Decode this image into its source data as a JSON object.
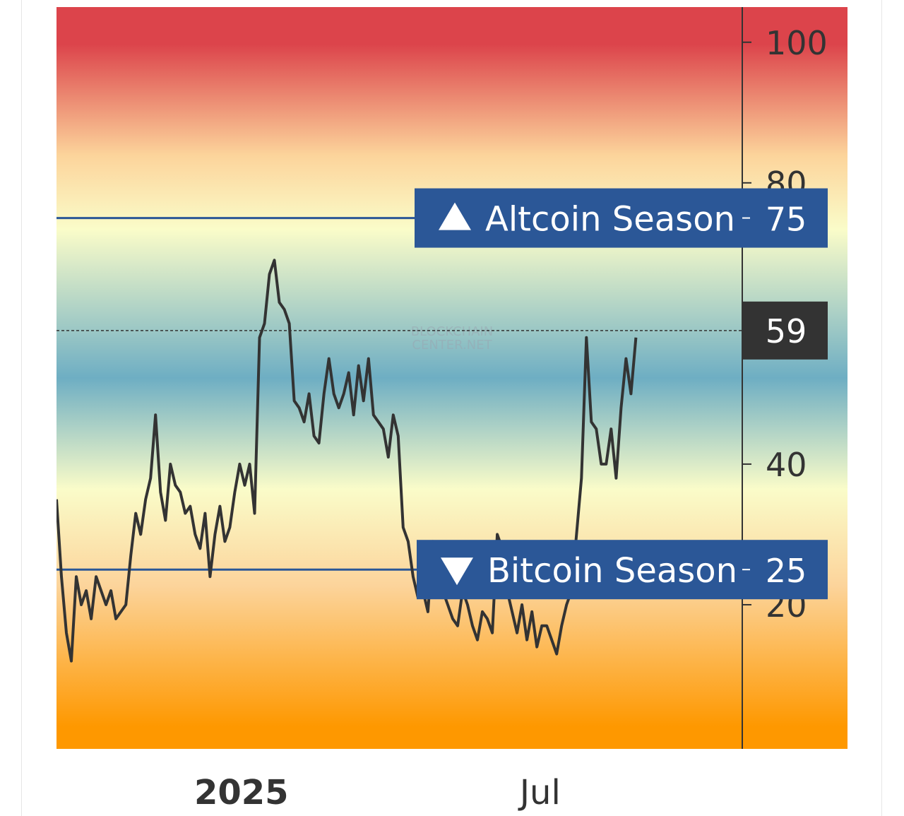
{
  "chart_data": {
    "type": "line",
    "title": "",
    "xlabel": "",
    "ylabel": "",
    "ylim": [
      -0.5,
      105
    ],
    "y_ticks": [
      {
        "value": 100,
        "label": "100"
      },
      {
        "value": 80,
        "label": "80"
      },
      {
        "value": 40,
        "label": "40"
      },
      {
        "value": 20,
        "label": "20"
      }
    ],
    "x_ticks": [
      {
        "date": "2025-01-01",
        "label": "2025"
      },
      {
        "date": "2025-07-01",
        "label": "Jul"
      }
    ],
    "x_range": [
      "2024-09-11",
      "2025-10-31"
    ],
    "thresholds": [
      {
        "value": 75,
        "label": "Altcoin Season",
        "value_label": "75",
        "marker": "triangle-up-icon"
      },
      {
        "value": 25,
        "label": "Bitcoin Season",
        "value_label": "25",
        "marker": "triangle-down-icon"
      }
    ],
    "current": {
      "value": 59,
      "label": "59"
    },
    "watermark": [
      "BLOCKCHAIN",
      "CENTER.NET"
    ],
    "colors": {
      "line": "#333333",
      "threshold_line": "#2b5797",
      "label_bg": "#2b5797",
      "current_bg": "#333333",
      "gradient": [
        "#dc444b",
        "#fcd49b",
        "#fafcc9",
        "#6eaec3",
        "#fafcc9",
        "#fcd49b",
        "#fe9800"
      ]
    },
    "series": [
      {
        "x": [
          "2024-09-11",
          "2024-09-14",
          "2024-09-17",
          "2024-09-20",
          "2024-09-23",
          "2024-09-26",
          "2024-09-29",
          "2024-10-02",
          "2024-10-05",
          "2024-10-08",
          "2024-10-11",
          "2024-10-14",
          "2024-10-17",
          "2024-10-20",
          "2024-10-23",
          "2024-10-26",
          "2024-10-29",
          "2024-11-01",
          "2024-11-04",
          "2024-11-07",
          "2024-11-10",
          "2024-11-13",
          "2024-11-16",
          "2024-11-19",
          "2024-11-22",
          "2024-11-25",
          "2024-11-28",
          "2024-12-01",
          "2024-12-04",
          "2024-12-07",
          "2024-12-10",
          "2024-12-13",
          "2024-12-16",
          "2024-12-19",
          "2024-12-22",
          "2024-12-25",
          "2024-12-28",
          "2024-12-31",
          "2025-01-03",
          "2025-01-06",
          "2025-01-09",
          "2025-01-12",
          "2025-01-15",
          "2025-01-18",
          "2025-01-21",
          "2025-01-24",
          "2025-01-27",
          "2025-01-30",
          "2025-02-02",
          "2025-02-05",
          "2025-02-08",
          "2025-02-11",
          "2025-02-14",
          "2025-02-17",
          "2025-02-20",
          "2025-02-23",
          "2025-02-26",
          "2025-03-01",
          "2025-03-04",
          "2025-03-07",
          "2025-03-10",
          "2025-03-13",
          "2025-03-16",
          "2025-03-19",
          "2025-03-22",
          "2025-03-25",
          "2025-03-28",
          "2025-03-31",
          "2025-04-03",
          "2025-04-06",
          "2025-04-09",
          "2025-04-12",
          "2025-04-15",
          "2025-04-18",
          "2025-04-21",
          "2025-04-24",
          "2025-04-27",
          "2025-04-30",
          "2025-05-03",
          "2025-05-06",
          "2025-05-09",
          "2025-05-12",
          "2025-05-15",
          "2025-05-18",
          "2025-05-21",
          "2025-05-24",
          "2025-05-27",
          "2025-05-30",
          "2025-06-02",
          "2025-06-05",
          "2025-06-08",
          "2025-06-11",
          "2025-06-14",
          "2025-06-17",
          "2025-06-20",
          "2025-06-23",
          "2025-06-26",
          "2025-06-29",
          "2025-07-02",
          "2025-07-05",
          "2025-07-08",
          "2025-07-11",
          "2025-07-14",
          "2025-07-17",
          "2025-07-20",
          "2025-07-23",
          "2025-07-26",
          "2025-07-29",
          "2025-08-01",
          "2025-08-04",
          "2025-08-07",
          "2025-08-10",
          "2025-08-13",
          "2025-08-16",
          "2025-08-19",
          "2025-08-22",
          "2025-08-25",
          "2025-08-28"
        ],
        "values": [
          35,
          24,
          16,
          12,
          24,
          20,
          22,
          18,
          24,
          22,
          20,
          22,
          18,
          19,
          20,
          27,
          33,
          30,
          35,
          38,
          47,
          36,
          32,
          40,
          37,
          36,
          33,
          34,
          30,
          28,
          33,
          24,
          30,
          34,
          29,
          31,
          36,
          40,
          37,
          40,
          33,
          58,
          60,
          67,
          69,
          63,
          62,
          60,
          49,
          48,
          46,
          50,
          44,
          43,
          50,
          55,
          50,
          48,
          50,
          53,
          47,
          54,
          49,
          55,
          47,
          46,
          45,
          41,
          47,
          44,
          31,
          29,
          24,
          21,
          22,
          19,
          29,
          21,
          22,
          20,
          18,
          17,
          22,
          20,
          17,
          15,
          19,
          18,
          16,
          30,
          28,
          22,
          19,
          16,
          20,
          15,
          19,
          14,
          17,
          17,
          15,
          13,
          17,
          20,
          22,
          30,
          38,
          58,
          46,
          45,
          40,
          40,
          45,
          38,
          48,
          55,
          50,
          58
        ]
      }
    ]
  }
}
